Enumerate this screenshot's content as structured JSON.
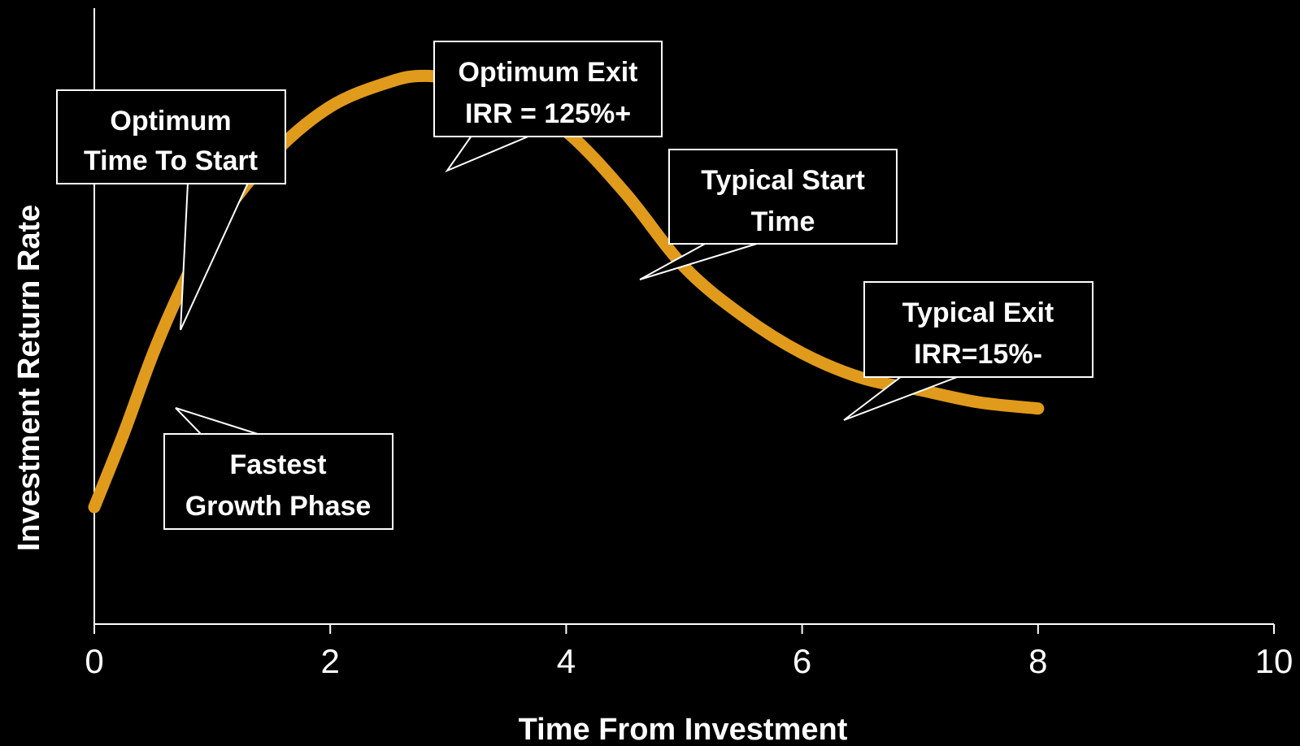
{
  "chart_data": {
    "type": "line",
    "title": "",
    "xlabel": "Time From Investment",
    "ylabel": "Investment  Return  Rate",
    "xlim": [
      0,
      10
    ],
    "x_ticks": [
      "0",
      "2",
      "4",
      "6",
      "8",
      "10"
    ],
    "y_ticks_shown": false,
    "grid": false,
    "series": [
      {
        "color": "#e09b1c",
        "points": [
          [
            0.0,
            0.19
          ],
          [
            0.25,
            0.31
          ],
          [
            0.5,
            0.44
          ],
          [
            0.75,
            0.55
          ],
          [
            1.0,
            0.64
          ],
          [
            1.5,
            0.76
          ],
          [
            2.0,
            0.84
          ],
          [
            2.5,
            0.88
          ],
          [
            2.8,
            0.89
          ],
          [
            3.2,
            0.88
          ],
          [
            3.5,
            0.86
          ],
          [
            4.0,
            0.8
          ],
          [
            4.5,
            0.7
          ],
          [
            5.0,
            0.58
          ],
          [
            5.5,
            0.5
          ],
          [
            6.0,
            0.44
          ],
          [
            6.5,
            0.4
          ],
          [
            7.0,
            0.38
          ],
          [
            7.5,
            0.36
          ],
          [
            8.0,
            0.35
          ]
        ]
      }
    ],
    "annotations": [
      {
        "lines": [
          "Optimum",
          "Time To Start"
        ]
      },
      {
        "lines": [
          "Optimum Exit",
          "IRR = 125%+"
        ]
      },
      {
        "lines": [
          "Typical Start",
          "Time"
        ]
      },
      {
        "lines": [
          "Typical Exit",
          "IRR=15%-"
        ]
      },
      {
        "lines": [
          "Fastest",
          "Growth Phase"
        ]
      }
    ]
  }
}
